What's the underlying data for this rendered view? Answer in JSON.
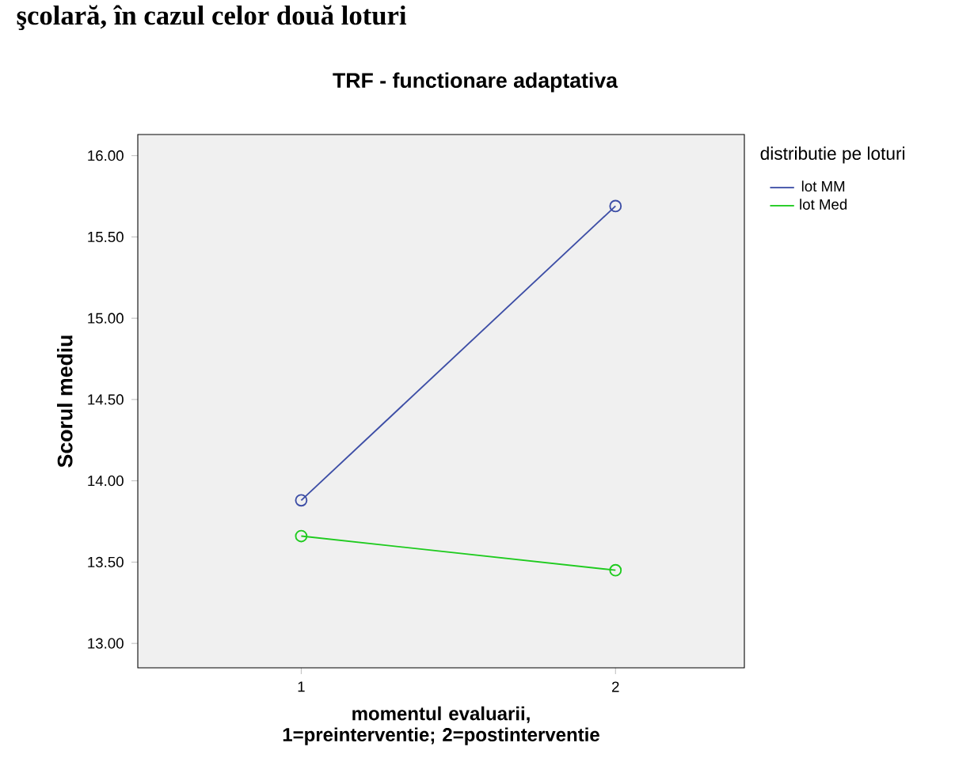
{
  "chart_data": {
    "type": "line",
    "title": "TRF - functionare adaptativa",
    "xlabel": "momentul evaluarii, 1=preinterventie; 2=postinterventie",
    "ylabel": "Scorul mediu",
    "legend_title": "distributie pe loturi",
    "annotations": [
      "şcolară, în cazul celor două loturi"
    ],
    "categories": [
      "1",
      "2"
    ],
    "series": [
      {
        "name": "lot MM",
        "color": "#3d4ea6",
        "values": [
          13.88,
          15.69
        ]
      },
      {
        "name": "lot Med",
        "color": "#1fcb1f",
        "values": [
          13.66,
          13.45
        ]
      }
    ],
    "ylim": [
      12.85,
      16.13
    ],
    "yticks": [
      {
        "value": 13,
        "label": "13.00"
      },
      {
        "value": 13.5,
        "label": "13.50"
      },
      {
        "value": 14,
        "label": "14.00"
      },
      {
        "value": 14.5,
        "label": "14.50"
      },
      {
        "value": 15,
        "label": "15.00"
      },
      {
        "value": 15.5,
        "label": "15.50"
      },
      {
        "value": 16,
        "label": "16.00"
      }
    ],
    "marker": "circle",
    "line_style": "solid",
    "legend": "right",
    "grid": false
  }
}
